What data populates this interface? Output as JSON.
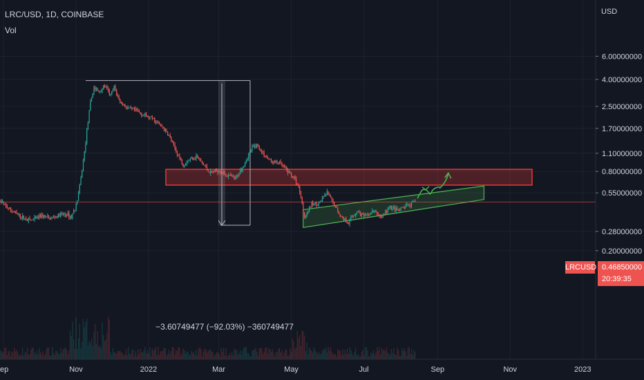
{
  "header": {
    "symbol_line": "LRC/USD, 1D, COINBASE",
    "volume_label": "Vol"
  },
  "price_axis": {
    "currency": "USD",
    "ticks": [
      "6.00000000",
      "4.00000000",
      "2.50000000",
      "1.70000000",
      "1.10000000",
      "0.80000000",
      "0.55000000",
      "0.28000000",
      "0.20000000"
    ]
  },
  "time_axis": {
    "ticks": [
      "ep",
      "Nov",
      "2022",
      "Mar",
      "May",
      "Jul",
      "Sep",
      "Nov",
      "2023"
    ]
  },
  "last_price": {
    "ticker": "LRCUSD",
    "price": "0.46850000",
    "countdown": "20:39:35"
  },
  "measure": {
    "label": "−3.60749477 (−92.03%) −360749477"
  },
  "colors": {
    "background": "#131722",
    "up": "#26a69a",
    "down": "#ef5350",
    "zone": "#e53935",
    "channel": "#4caf50",
    "arrow": "#4caf50"
  },
  "chart_data": {
    "type": "candlestick",
    "symbol": "LRC/USD",
    "interval": "1D",
    "exchange": "COINBASE",
    "scale": "log",
    "xlabel": "",
    "ylabel": "USD",
    "ylim": [
      0.18,
      7.5
    ],
    "last_price": 0.4685,
    "resistance_zone": [
      0.63,
      0.83
    ],
    "measured_drop": {
      "high": 3.92,
      "low": 0.312,
      "change": -3.60749477,
      "percent": -92.03
    },
    "ascending_channel": {
      "start": "2022-05-11",
      "end": "2022-10-10",
      "lower_start": 0.3,
      "lower_end": 0.49,
      "upper_start": 0.41,
      "upper_end": 0.62
    },
    "projection": [
      {
        "date": "2022-08-15",
        "price": 0.5
      },
      {
        "date": "2022-08-22",
        "price": 0.58
      },
      {
        "date": "2022-08-27",
        "price": 0.56
      },
      {
        "date": "2022-09-03",
        "price": 0.6
      },
      {
        "date": "2022-09-10",
        "price": 0.78
      }
    ],
    "price_path": [
      [
        "2021-09-01",
        0.45
      ],
      [
        "2021-09-05",
        0.42
      ],
      [
        "2021-09-12",
        0.38
      ],
      [
        "2021-09-19",
        0.35
      ],
      [
        "2021-09-26",
        0.34
      ],
      [
        "2021-10-03",
        0.37
      ],
      [
        "2021-10-10",
        0.35
      ],
      [
        "2021-10-17",
        0.37
      ],
      [
        "2021-10-24",
        0.38
      ],
      [
        "2021-10-28",
        0.36
      ],
      [
        "2021-11-01",
        0.44
      ],
      [
        "2021-11-04",
        0.6
      ],
      [
        "2021-11-08",
        1.1
      ],
      [
        "2021-11-10",
        1.6
      ],
      [
        "2021-11-13",
        2.6
      ],
      [
        "2021-11-16",
        3.5
      ],
      [
        "2021-11-20",
        3.2
      ],
      [
        "2021-11-25",
        3.6
      ],
      [
        "2021-11-30",
        3.0
      ],
      [
        "2021-12-03",
        3.5
      ],
      [
        "2021-12-08",
        2.7
      ],
      [
        "2021-12-15",
        2.4
      ],
      [
        "2021-12-22",
        2.3
      ],
      [
        "2021-12-30",
        2.1
      ],
      [
        "2022-01-05",
        2.0
      ],
      [
        "2022-01-12",
        1.75
      ],
      [
        "2022-01-18",
        1.5
      ],
      [
        "2022-01-24",
        1.15
      ],
      [
        "2022-01-30",
        0.9
      ],
      [
        "2022-02-05",
        1.0
      ],
      [
        "2022-02-10",
        1.05
      ],
      [
        "2022-02-16",
        0.9
      ],
      [
        "2022-02-22",
        0.78
      ],
      [
        "2022-03-01",
        0.82
      ],
      [
        "2022-03-08",
        0.75
      ],
      [
        "2022-03-15",
        0.7
      ],
      [
        "2022-03-22",
        0.9
      ],
      [
        "2022-03-29",
        1.2
      ],
      [
        "2022-04-02",
        1.28
      ],
      [
        "2022-04-07",
        1.1
      ],
      [
        "2022-04-14",
        0.95
      ],
      [
        "2022-04-21",
        0.93
      ],
      [
        "2022-04-28",
        0.8
      ],
      [
        "2022-05-03",
        0.72
      ],
      [
        "2022-05-08",
        0.58
      ],
      [
        "2022-05-12",
        0.36
      ],
      [
        "2022-05-18",
        0.45
      ],
      [
        "2022-05-24",
        0.46
      ],
      [
        "2022-05-31",
        0.55
      ],
      [
        "2022-06-06",
        0.45
      ],
      [
        "2022-06-12",
        0.36
      ],
      [
        "2022-06-18",
        0.33
      ],
      [
        "2022-06-25",
        0.4
      ],
      [
        "2022-07-02",
        0.36
      ],
      [
        "2022-07-09",
        0.4
      ],
      [
        "2022-07-16",
        0.36
      ],
      [
        "2022-07-23",
        0.43
      ],
      [
        "2022-07-30",
        0.4
      ],
      [
        "2022-08-06",
        0.44
      ],
      [
        "2022-08-14",
        0.47
      ]
    ]
  }
}
